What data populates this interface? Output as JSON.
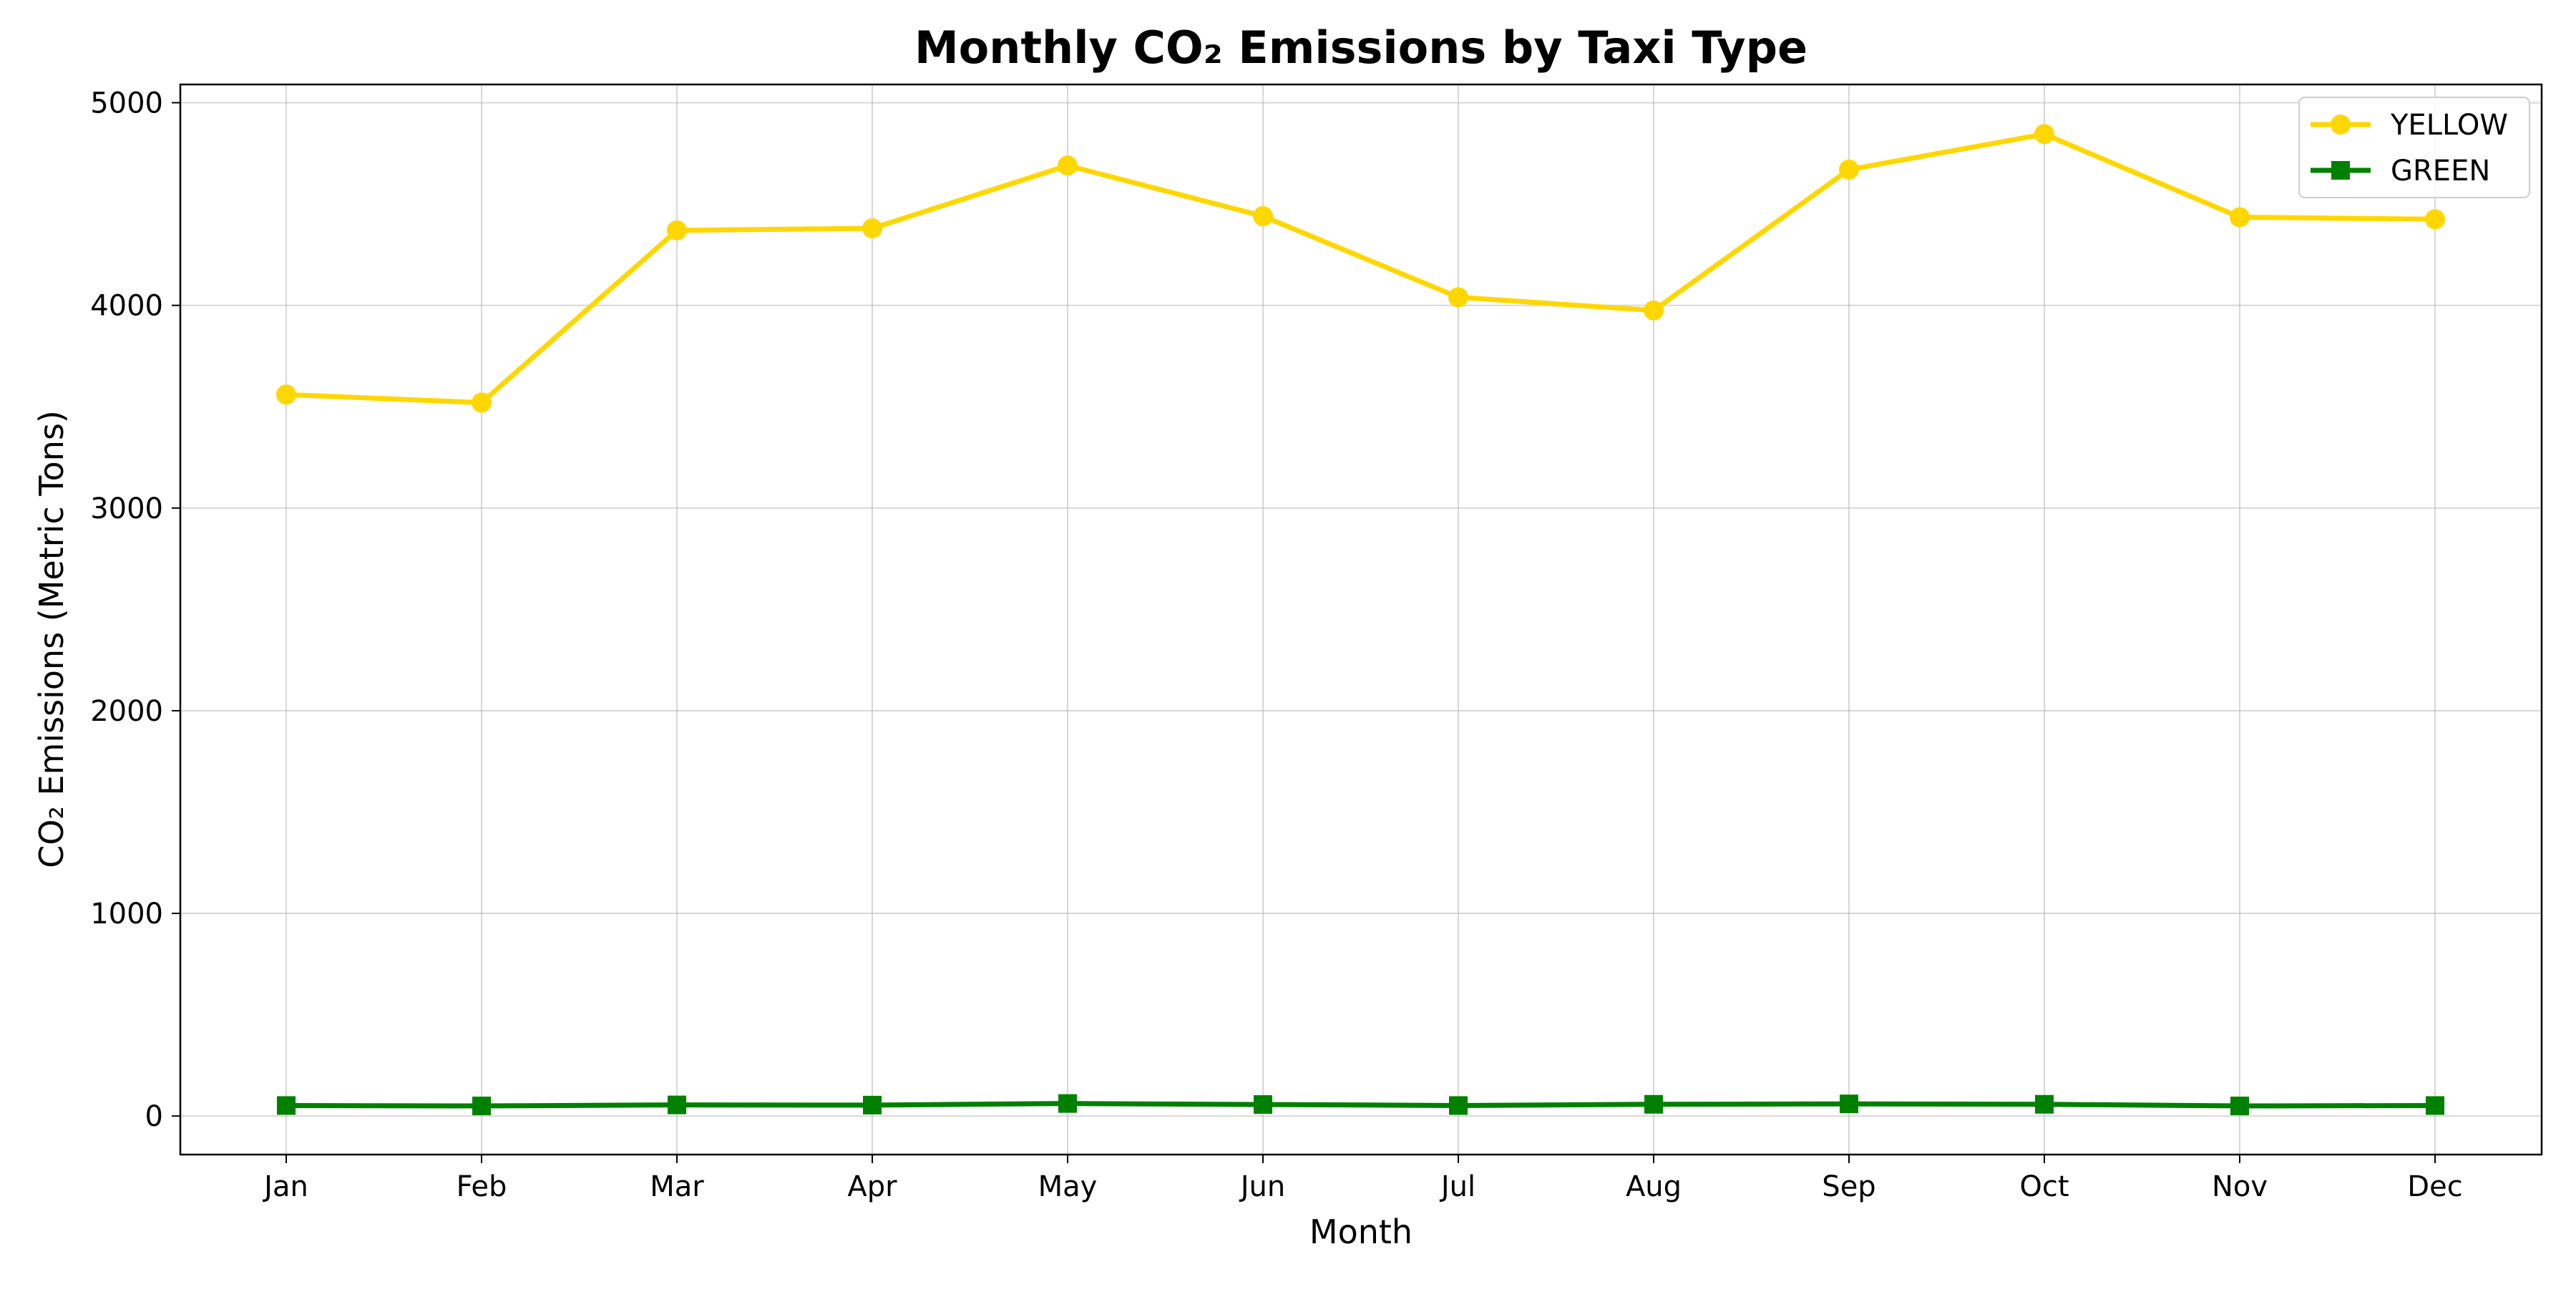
{
  "chart_data": {
    "type": "line",
    "title": "Monthly CO₂ Emissions by Taxi Type",
    "xlabel": "Month",
    "ylabel": "CO₂ Emissions (Metric Tons)",
    "categories": [
      "Jan",
      "Feb",
      "Mar",
      "Apr",
      "May",
      "Jun",
      "Jul",
      "Aug",
      "Sep",
      "Oct",
      "Nov",
      "Dec"
    ],
    "ylim": [
      -190,
      5090
    ],
    "yticks": [
      0,
      1000,
      2000,
      3000,
      4000,
      5000
    ],
    "grid": true,
    "legend_position": "top-right",
    "series": [
      {
        "name": "YELLOW",
        "color": "#FFD700",
        "marker": "circle",
        "values": [
          3560,
          3520,
          4370,
          4380,
          4690,
          4440,
          4040,
          3975,
          4670,
          4845,
          4435,
          4425
        ]
      },
      {
        "name": "GREEN",
        "color": "#008000",
        "marker": "square",
        "values": [
          52,
          50,
          55,
          54,
          62,
          57,
          52,
          58,
          60,
          58,
          50,
          52
        ]
      }
    ]
  }
}
